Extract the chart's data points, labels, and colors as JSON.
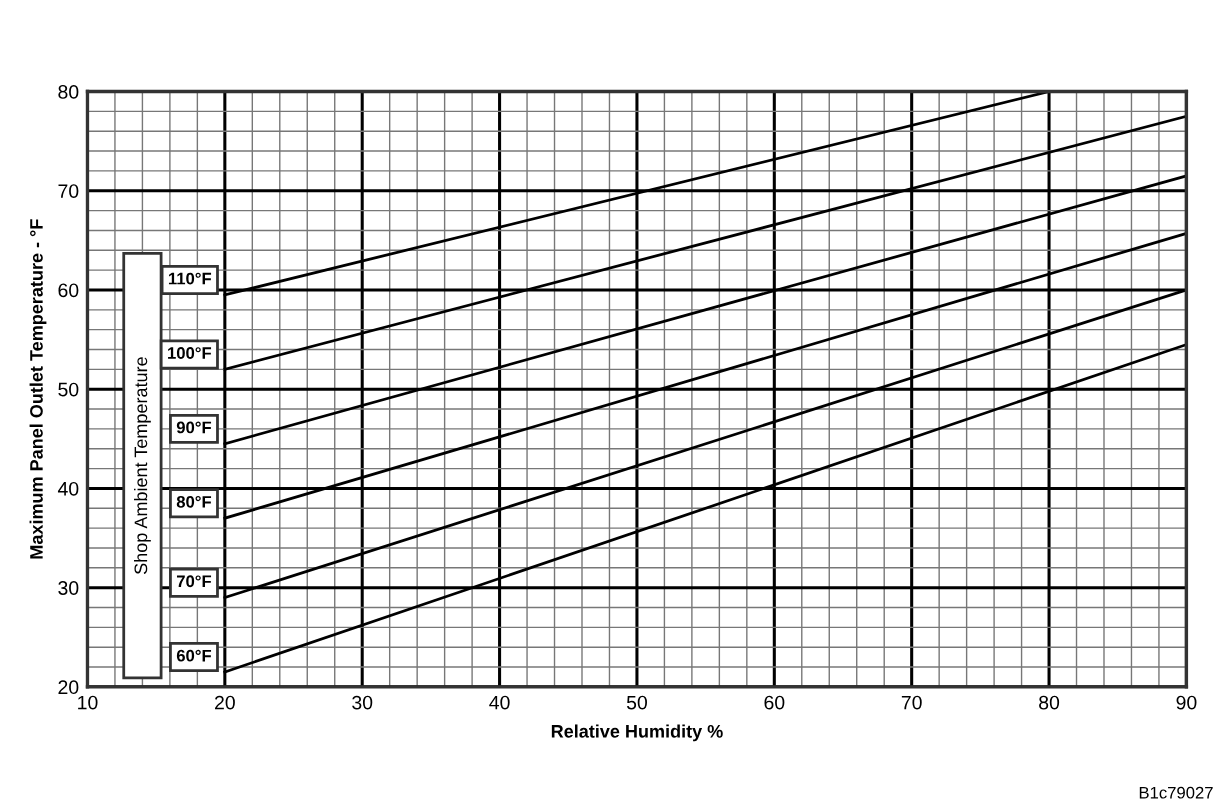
{
  "chart_data": {
    "type": "line",
    "xlabel": "Relative Humidity %",
    "ylabel": "Maximum Panel Outlet Temperature - °F",
    "legend_title": "Shop Ambient Temperature",
    "series": [
      {
        "name": "110°F",
        "color": "#000000",
        "x": [
          20,
          80
        ],
        "values": [
          59.5,
          80
        ]
      },
      {
        "name": "100°F",
        "color": "#000000",
        "x": [
          20,
          90
        ],
        "values": [
          52,
          77.5
        ]
      },
      {
        "name": "90°F",
        "color": "#000000",
        "x": [
          20,
          90
        ],
        "values": [
          44.5,
          71.5
        ]
      },
      {
        "name": "80°F",
        "color": "#000000",
        "x": [
          20,
          90
        ],
        "values": [
          37,
          65.7
        ]
      },
      {
        "name": "70°F",
        "color": "#000000",
        "x": [
          20,
          90
        ],
        "values": [
          29,
          60
        ]
      },
      {
        "name": "60°F",
        "color": "#000000",
        "x": [
          20,
          90
        ],
        "values": [
          21.5,
          54.5
        ]
      }
    ],
    "xlim": [
      10,
      90
    ],
    "ylim": [
      20,
      80
    ],
    "xticks": [
      10,
      20,
      30,
      40,
      50,
      60,
      70,
      80,
      90
    ],
    "yticks": [
      20,
      30,
      40,
      50,
      60,
      70,
      80
    ],
    "grid": true,
    "legend": "left",
    "marker": "none",
    "line_style": "solid",
    "annotations": [
      "B1c79027"
    ]
  }
}
